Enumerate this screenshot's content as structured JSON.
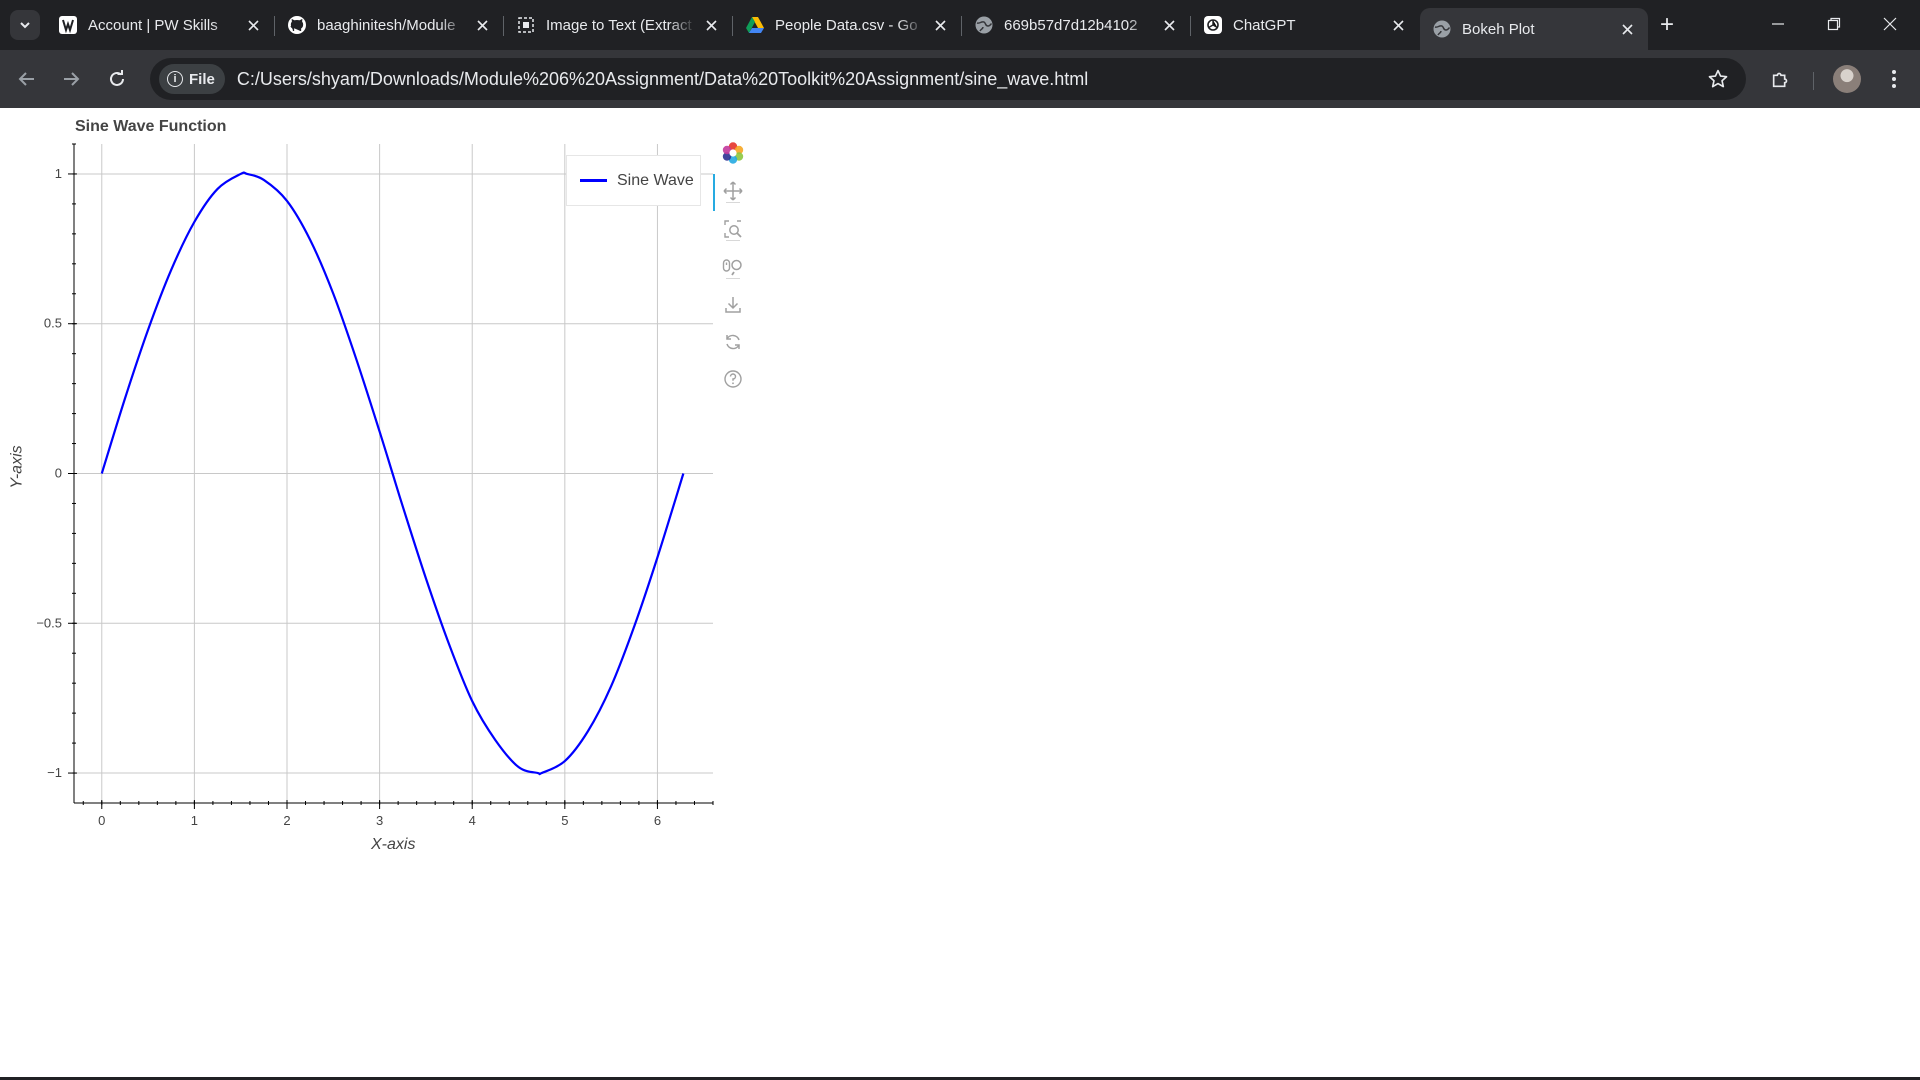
{
  "browser": {
    "tabs": [
      {
        "title": "Account | PW Skills",
        "icon": "pw-skills-icon",
        "active": false
      },
      {
        "title": "baaghinitesh/Module",
        "icon": "github-icon",
        "active": false
      },
      {
        "title": "Image to Text (Extract",
        "icon": "image-to-text-icon",
        "active": false
      },
      {
        "title": "People Data.csv - Go",
        "icon": "google-drive-icon",
        "active": false
      },
      {
        "title": "669b57d7d12b4102",
        "icon": "globe-icon",
        "active": false
      },
      {
        "title": "ChatGPT",
        "icon": "chatgpt-icon",
        "active": false
      },
      {
        "title": "Bokeh Plot",
        "icon": "globe-icon",
        "active": true
      }
    ],
    "address": {
      "scheme_chip": "File",
      "url": "C:/Users/shyam/Downloads/Module%206%20Assignment/Data%20Toolkit%20Assignment/sine_wave.html"
    }
  },
  "plot": {
    "toolbar_tools": [
      "bokeh-logo",
      "pan-tool",
      "box-zoom-tool",
      "wheel-zoom-tool",
      "save-tool",
      "reset-tool",
      "help-tool"
    ],
    "line_color": "#0000ff"
  },
  "chart_data": {
    "type": "line",
    "title": "Sine Wave Function",
    "xlabel": "X-axis",
    "ylabel": "Y-axis",
    "xlim": [
      -0.3,
      6.6
    ],
    "ylim": [
      -1.1,
      1.1
    ],
    "x_ticks": [
      0,
      1,
      2,
      3,
      4,
      5,
      6
    ],
    "x_tick_labels": [
      "0",
      "1",
      "2",
      "3",
      "4",
      "5",
      "6"
    ],
    "y_ticks": [
      1,
      0.5,
      0,
      -0.5,
      -1
    ],
    "y_tick_labels": [
      "1",
      "0.5",
      "0",
      "−0.5",
      "−1"
    ],
    "grid": true,
    "legend_position": "top-right",
    "series": [
      {
        "name": "Sine Wave",
        "color": "#0000ff",
        "x": [
          0,
          0.25,
          0.5,
          0.75,
          1.0,
          1.25,
          1.5,
          1.57,
          1.75,
          2.0,
          2.25,
          2.5,
          2.75,
          3.0,
          3.14,
          3.25,
          3.5,
          3.75,
          4.0,
          4.25,
          4.5,
          4.71,
          4.75,
          5.0,
          5.25,
          5.5,
          5.75,
          6.0,
          6.28
        ],
        "y": [
          0,
          0.25,
          0.48,
          0.68,
          0.84,
          0.95,
          1.0,
          1.0,
          0.98,
          0.91,
          0.78,
          0.6,
          0.38,
          0.14,
          0,
          -0.11,
          -0.35,
          -0.57,
          -0.76,
          -0.89,
          -0.98,
          -1.0,
          -1.0,
          -0.96,
          -0.86,
          -0.71,
          -0.51,
          -0.28,
          0
        ]
      }
    ]
  }
}
